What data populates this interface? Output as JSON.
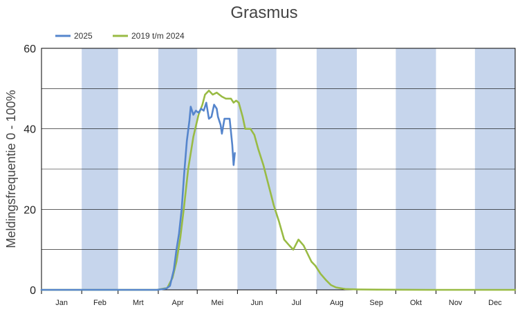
{
  "chart_data": {
    "type": "line",
    "title": "Grasmus",
    "xlabel": "",
    "ylabel": "Meldingsfrequentie 0 - 100%",
    "ylim": [
      0,
      60
    ],
    "yticks": [
      0,
      20,
      40,
      60
    ],
    "grid": true,
    "legend_position": "top-left",
    "months": [
      "Jan",
      "Feb",
      "Mrt",
      "Apr",
      "Mei",
      "Jun",
      "Jul",
      "Aug",
      "Sep",
      "Okt",
      "Nov",
      "Dec"
    ],
    "month_band_color": "#c6d5ec",
    "series": [
      {
        "name": "2025",
        "color": "#5585cc",
        "points": [
          [
            1,
            0
          ],
          [
            30,
            0
          ],
          [
            60,
            0
          ],
          [
            90,
            0
          ],
          [
            97,
            0.3
          ],
          [
            100,
            1
          ],
          [
            103,
            5
          ],
          [
            105,
            10
          ],
          [
            107,
            14
          ],
          [
            109,
            20
          ],
          [
            111,
            29
          ],
          [
            113,
            37
          ],
          [
            115,
            42
          ],
          [
            116,
            45.5
          ],
          [
            118,
            43.5
          ],
          [
            120,
            44.5
          ],
          [
            122,
            44
          ],
          [
            124,
            45
          ],
          [
            126,
            44.5
          ],
          [
            128,
            46.5
          ],
          [
            130,
            42.5
          ],
          [
            132,
            43
          ],
          [
            134,
            46
          ],
          [
            136,
            45
          ],
          [
            137,
            43
          ],
          [
            139,
            41
          ],
          [
            140,
            38.8
          ],
          [
            142,
            42.5
          ],
          [
            146,
            42.5
          ],
          [
            148,
            36
          ],
          [
            149,
            31
          ],
          [
            150,
            34
          ]
        ]
      },
      {
        "name": "2019 t/m 2024",
        "color": "#99bb44",
        "points": [
          [
            1,
            0
          ],
          [
            30,
            0
          ],
          [
            60,
            0
          ],
          [
            90,
            0
          ],
          [
            98,
            0.5
          ],
          [
            102,
            3
          ],
          [
            105,
            7
          ],
          [
            108,
            13
          ],
          [
            111,
            21
          ],
          [
            114,
            30
          ],
          [
            118,
            38
          ],
          [
            122,
            43.5
          ],
          [
            125,
            46
          ],
          [
            127,
            48.5
          ],
          [
            130,
            49.5
          ],
          [
            133,
            48.5
          ],
          [
            136,
            49
          ],
          [
            140,
            48
          ],
          [
            143,
            47.5
          ],
          [
            147,
            47.5
          ],
          [
            149,
            46.5
          ],
          [
            151,
            47
          ],
          [
            153,
            46.5
          ],
          [
            156,
            43
          ],
          [
            158,
            40
          ],
          [
            162,
            40
          ],
          [
            165,
            38.5
          ],
          [
            168,
            35
          ],
          [
            172,
            31
          ],
          [
            176,
            26
          ],
          [
            180,
            21
          ],
          [
            184,
            17
          ],
          [
            188,
            12.5
          ],
          [
            192,
            11
          ],
          [
            195,
            10
          ],
          [
            199,
            12.5
          ],
          [
            203,
            11
          ],
          [
            206,
            9
          ],
          [
            209,
            7
          ],
          [
            212,
            6
          ],
          [
            216,
            4
          ],
          [
            220,
            2.5
          ],
          [
            224,
            1.2
          ],
          [
            228,
            0.6
          ],
          [
            235,
            0.2
          ],
          [
            245,
            0.1
          ],
          [
            260,
            0.05
          ],
          [
            300,
            0
          ],
          [
            366,
            0
          ]
        ]
      }
    ]
  }
}
